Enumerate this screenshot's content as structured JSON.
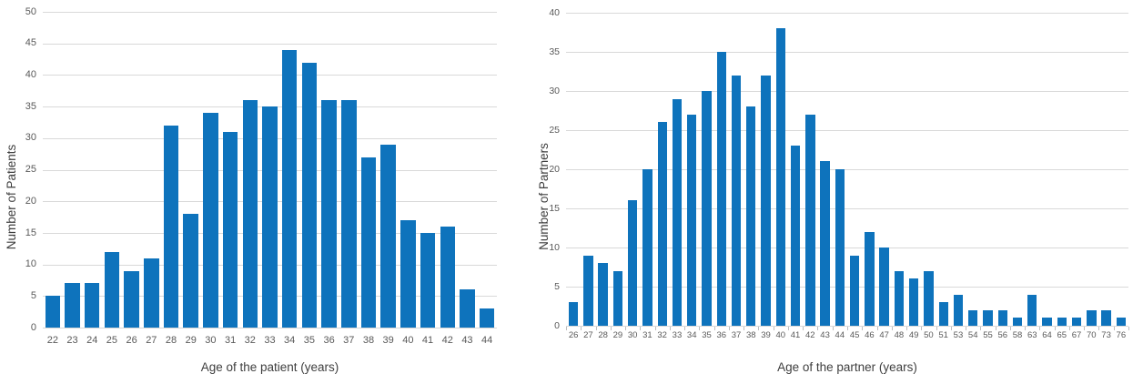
{
  "figure": {
    "description": "Two side-by-side age distribution histograms"
  },
  "colors": {
    "bar": "#0E73BC",
    "gridline": "#D9D9D9",
    "tick_mark": "#BFBFBF",
    "tick_label": "#595959",
    "axis_title": "#3E3E3E",
    "background": "#FFFFFF"
  },
  "chart_data": [
    {
      "type": "bar",
      "title": "",
      "xlabel": "Age of the patient (years)",
      "ylabel": "Number of Patients",
      "categories": [
        22,
        23,
        24,
        25,
        26,
        27,
        28,
        29,
        30,
        31,
        32,
        33,
        34,
        35,
        36,
        37,
        38,
        39,
        40,
        41,
        42,
        43,
        44
      ],
      "values": [
        5,
        7,
        7,
        12,
        9,
        11,
        32,
        18,
        34,
        31,
        36,
        35,
        44,
        42,
        36,
        36,
        27,
        29,
        17,
        15,
        16,
        6,
        3
      ],
      "ylim": [
        0,
        50
      ],
      "yticks": [
        0,
        5,
        10,
        15,
        20,
        25,
        30,
        35,
        40,
        45,
        50
      ],
      "grid": true,
      "legend": false,
      "x_tick_marks": false
    },
    {
      "type": "bar",
      "title": "",
      "xlabel": "Age of the partner (years)",
      "ylabel": "Number of Partners",
      "categories": [
        26,
        27,
        28,
        29,
        30,
        31,
        32,
        33,
        34,
        35,
        36,
        37,
        38,
        39,
        40,
        41,
        42,
        43,
        44,
        45,
        46,
        47,
        48,
        49,
        50,
        51,
        53,
        54,
        55,
        56,
        58,
        63,
        64,
        65,
        67,
        70,
        73,
        76
      ],
      "values": [
        3,
        9,
        8,
        7,
        16,
        20,
        26,
        29,
        27,
        30,
        35,
        32,
        28,
        32,
        38,
        23,
        27,
        21,
        20,
        9,
        12,
        10,
        7,
        6,
        7,
        3,
        4,
        2,
        2,
        2,
        1,
        4,
        1,
        1,
        1,
        2,
        2,
        1
      ],
      "ylim": [
        0,
        40
      ],
      "yticks": [
        0,
        5,
        10,
        15,
        20,
        25,
        30,
        35,
        40
      ],
      "grid": true,
      "legend": false,
      "x_tick_marks": true
    }
  ]
}
